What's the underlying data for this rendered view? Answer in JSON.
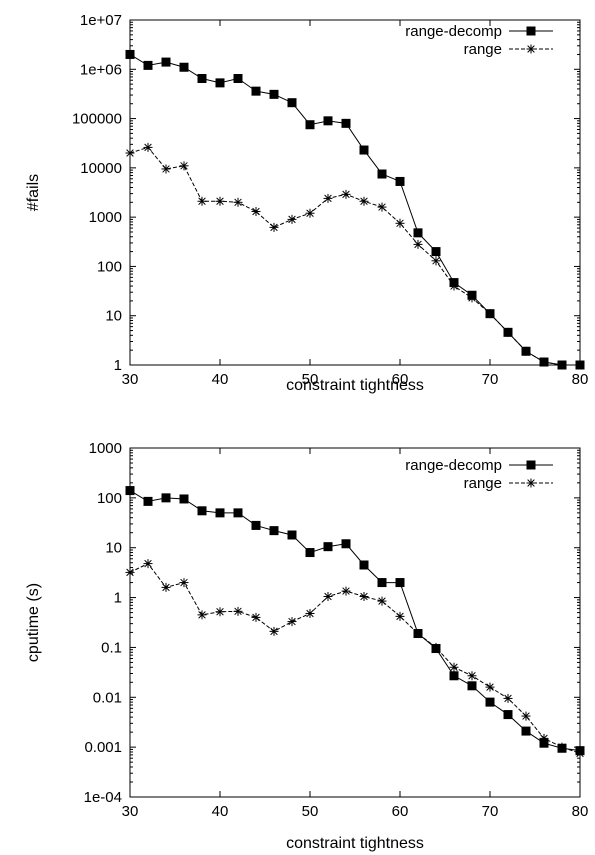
{
  "chart_data": [
    {
      "type": "line",
      "xlabel": "constraint tightness",
      "ylabel": "#fails",
      "xlim": [
        30,
        80
      ],
      "ylim": [
        1,
        10000000
      ],
      "yscale": "log",
      "xticks": [
        "30",
        "40",
        "50",
        "60",
        "70",
        "80"
      ],
      "yticks": [
        "1",
        "10",
        "100",
        "1000",
        "10000",
        "100000",
        "1e+06",
        "1e+07"
      ],
      "legend_position": "top-right",
      "x": [
        30,
        32,
        34,
        36,
        38,
        40,
        42,
        44,
        46,
        48,
        50,
        52,
        54,
        56,
        58,
        60,
        62,
        64,
        66,
        68,
        70,
        72,
        74,
        76,
        78,
        80
      ],
      "series": [
        {
          "name": "range-decomp",
          "marker": "filled-square",
          "line": "solid",
          "values": [
            2000000,
            1200000,
            1400000,
            1100000,
            650000,
            530000,
            650000,
            360000,
            310000,
            210000,
            75000,
            90000,
            80000,
            23000,
            7500,
            5300,
            480,
            200,
            47,
            26,
            11,
            4.6,
            1.9,
            1.15,
            1,
            1
          ]
        },
        {
          "name": "range",
          "marker": "asterisk",
          "line": "dashed",
          "values": [
            20000,
            26000,
            9500,
            11000,
            2100,
            2100,
            2000,
            1300,
            620,
            900,
            1200,
            2400,
            2900,
            2100,
            1600,
            750,
            280,
            130,
            40,
            23,
            11,
            4.6,
            1.9,
            1.15,
            1,
            1
          ]
        }
      ]
    },
    {
      "type": "line",
      "xlabel": "constraint tightness",
      "ylabel": "cputime (s)",
      "xlim": [
        30,
        80
      ],
      "ylim": [
        0.0001,
        1000
      ],
      "yscale": "log",
      "xticks": [
        "30",
        "40",
        "50",
        "60",
        "70",
        "80"
      ],
      "yticks": [
        "1e-04",
        "0.001",
        "0.01",
        "0.1",
        "1",
        "10",
        "100",
        "1000"
      ],
      "legend_position": "top-right",
      "x": [
        30,
        32,
        34,
        36,
        38,
        40,
        42,
        44,
        46,
        48,
        50,
        52,
        54,
        56,
        58,
        60,
        62,
        64,
        66,
        68,
        70,
        72,
        74,
        76,
        78,
        80
      ],
      "series": [
        {
          "name": "range-decomp",
          "marker": "filled-square",
          "line": "solid",
          "values": [
            140,
            85,
            100,
            95,
            55,
            50,
            50,
            28,
            22,
            18,
            8,
            10.5,
            12,
            4.5,
            2,
            2,
            0.19,
            0.095,
            0.027,
            0.017,
            0.008,
            0.0045,
            0.0021,
            0.0012,
            0.00095,
            0.00085
          ]
        },
        {
          "name": "range",
          "marker": "asterisk",
          "line": "dashed",
          "values": [
            3.2,
            4.8,
            1.6,
            2.0,
            0.45,
            0.52,
            0.53,
            0.4,
            0.21,
            0.33,
            0.48,
            1.05,
            1.35,
            1.05,
            0.85,
            0.42,
            0.19,
            0.1,
            0.04,
            0.027,
            0.016,
            0.0095,
            0.0042,
            0.0015,
            0.001,
            0.00075
          ]
        }
      ]
    }
  ]
}
